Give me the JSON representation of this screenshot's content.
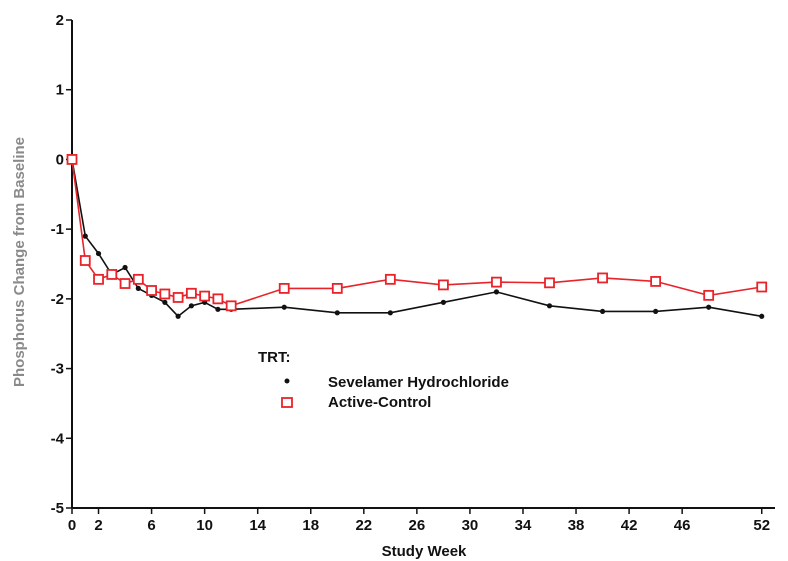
{
  "chart_data": {
    "type": "line",
    "title": "",
    "xlabel": "Study Week",
    "ylabel": "Phosphorus Change from Baseline",
    "xlim": [
      0,
      53
    ],
    "ylim": [
      -5,
      2
    ],
    "x_ticks": [
      0,
      2,
      6,
      10,
      14,
      18,
      22,
      26,
      30,
      34,
      38,
      42,
      46,
      52
    ],
    "y_ticks": [
      2,
      1,
      0,
      -1,
      -2,
      -3,
      -4,
      -5
    ],
    "grid": false,
    "legend": {
      "title": "TRT:",
      "placement": "center-left"
    },
    "series": [
      {
        "name": "Sevelamer Hydrochloride",
        "marker": "dot",
        "color": "#111111",
        "x": [
          0,
          1,
          2,
          3,
          4,
          5,
          6,
          7,
          8,
          9,
          10,
          11,
          12,
          16,
          20,
          24,
          28,
          32,
          36,
          40,
          44,
          48,
          52
        ],
        "y": [
          0,
          -1.1,
          -1.35,
          -1.65,
          -1.55,
          -1.85,
          -1.95,
          -2.05,
          -2.25,
          -2.1,
          -2.05,
          -2.15,
          -2.15,
          -2.12,
          -2.2,
          -2.2,
          -2.05,
          -1.9,
          -2.1,
          -2.18,
          -2.18,
          -2.12,
          -2.25
        ]
      },
      {
        "name": "Active-Control",
        "marker": "open-square",
        "color": "#e8232a",
        "x": [
          0,
          1,
          2,
          3,
          4,
          5,
          6,
          7,
          8,
          9,
          10,
          11,
          12,
          16,
          20,
          24,
          28,
          32,
          36,
          40,
          44,
          48,
          52
        ],
        "y": [
          0,
          -1.45,
          -1.72,
          -1.65,
          -1.78,
          -1.72,
          -1.88,
          -1.93,
          -1.98,
          -1.92,
          -1.96,
          -2.0,
          -2.1,
          -1.85,
          -1.85,
          -1.72,
          -1.8,
          -1.76,
          -1.77,
          -1.7,
          -1.75,
          -1.95,
          -1.83
        ]
      }
    ]
  }
}
